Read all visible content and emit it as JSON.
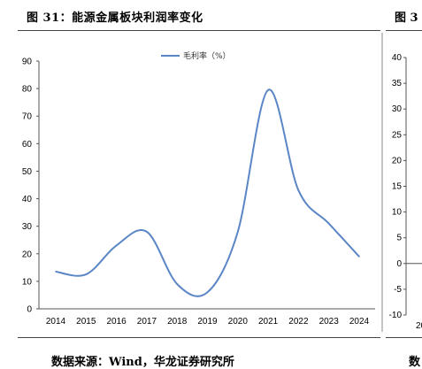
{
  "main_title": "图 31：能源金属板块利润率变化",
  "right_title": "图 3",
  "source": "数据来源：Wind，华龙证券研究所",
  "right_source": "数",
  "colors": {
    "line": "#5b86c6",
    "axis": "#555555",
    "frame": "#888888"
  },
  "chart_data": [
    {
      "type": "line",
      "title": "",
      "xlabel": "",
      "ylabel": "",
      "categories": [
        "2014",
        "2015",
        "2016",
        "2017",
        "2018",
        "2019",
        "2020",
        "2021",
        "2022",
        "2023",
        "2024"
      ],
      "series": [
        {
          "name": "毛利率（%）",
          "values": [
            13.5,
            12.5,
            23,
            28,
            9,
            6,
            28,
            79.5,
            43,
            31,
            19
          ]
        }
      ],
      "ylim": [
        0,
        90
      ],
      "yticks": [
        "0",
        "10",
        "20",
        "30",
        "40",
        "50",
        "60",
        "70",
        "80",
        "90"
      ],
      "grid": false,
      "legend": "top-center"
    },
    {
      "type": "line",
      "partial": true,
      "ylim": [
        -10,
        40
      ],
      "yticks": [
        "-10",
        "-5",
        "0",
        "5",
        "10",
        "15",
        "20",
        "25",
        "30",
        "35",
        "40"
      ],
      "xticks": [
        "20"
      ]
    }
  ]
}
